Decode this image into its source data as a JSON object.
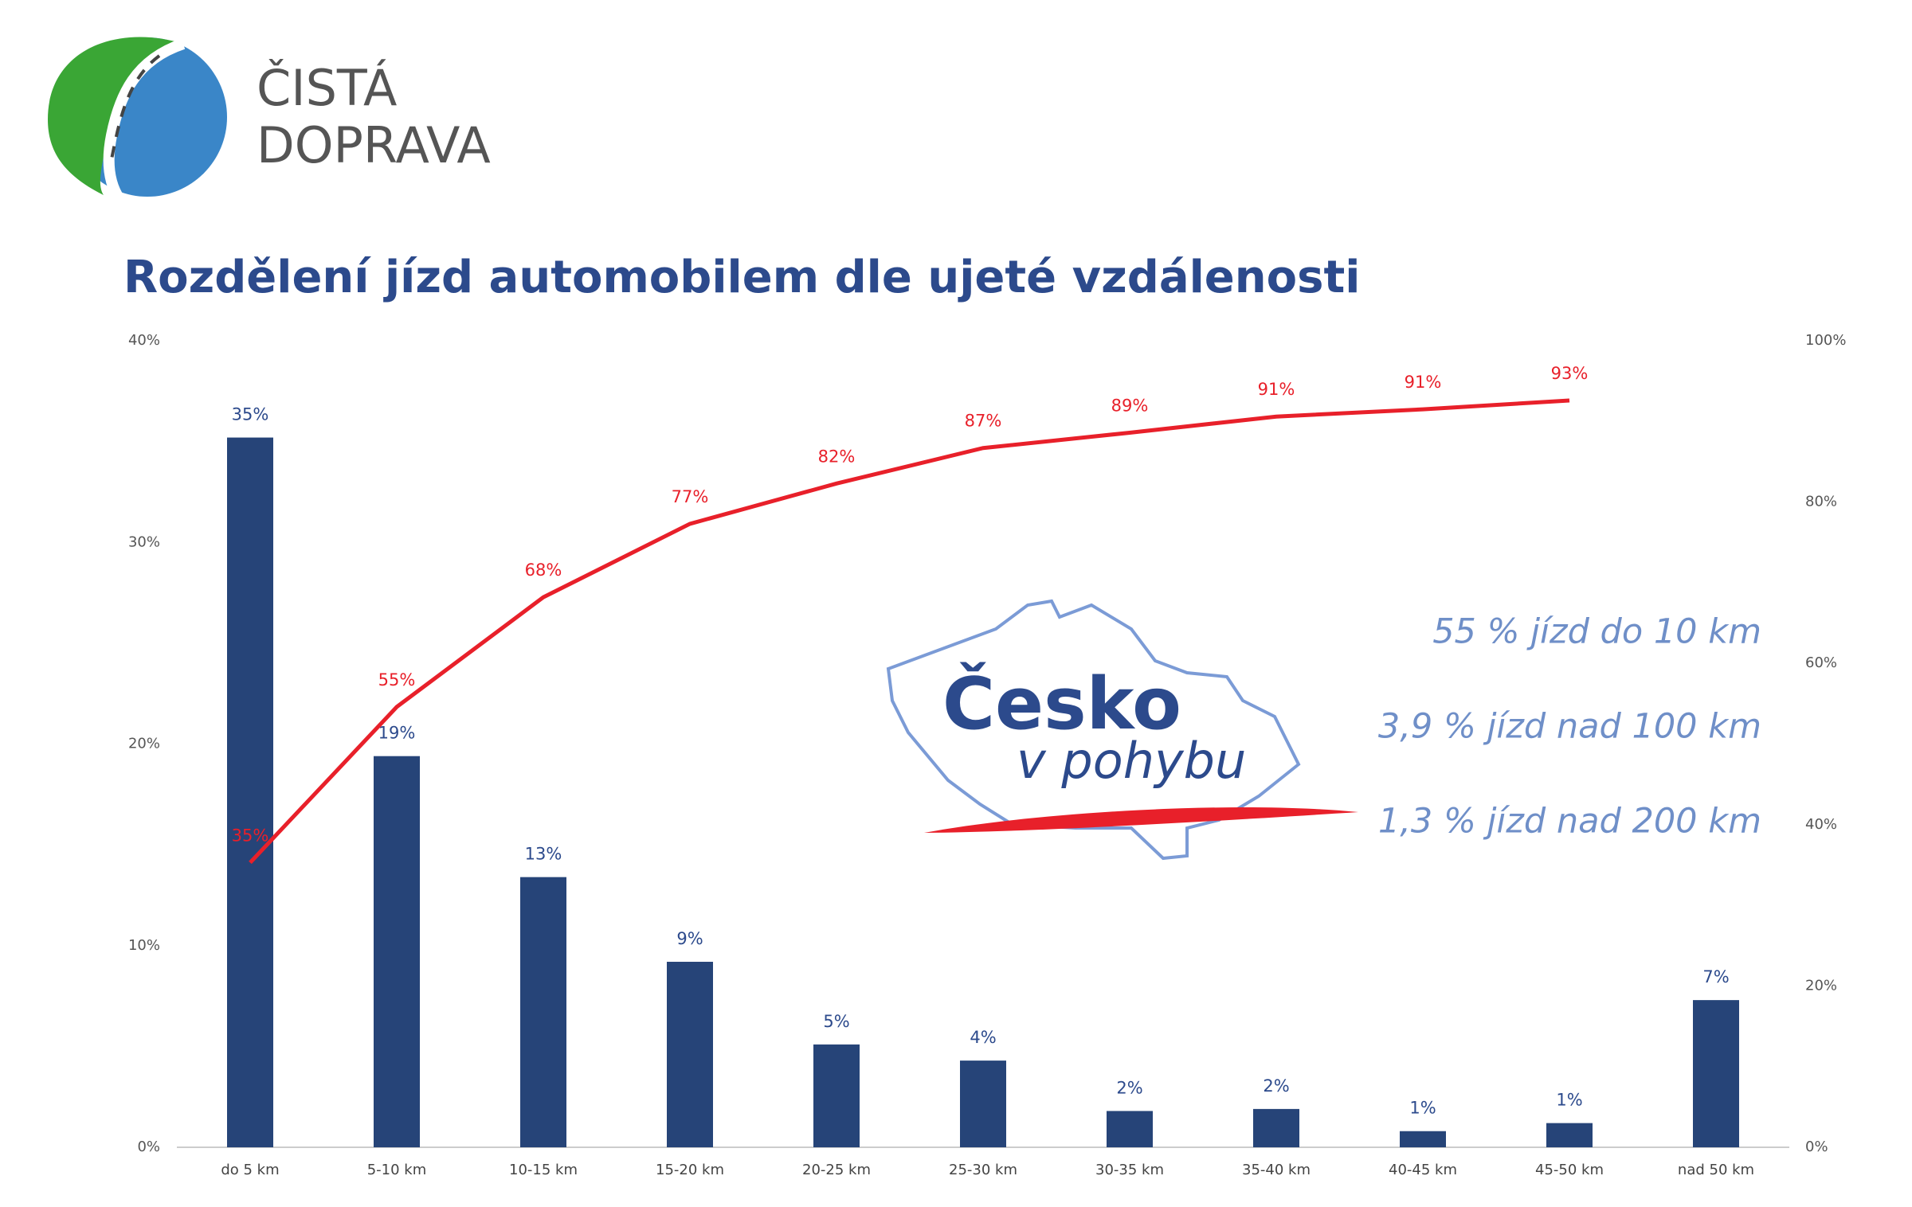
{
  "logo": {
    "line1": "ČISTÁ",
    "line2": "DOPRAVA"
  },
  "watermark": {
    "line1": "Česko",
    "line2": "v pohybu"
  },
  "chart_data": {
    "type": "bar+line",
    "title": "Rozdělení jízd automobilem dle ujeté vzdálenosti",
    "annotations": [
      "55 % jízd do 10 km",
      "3,9 % jízd nad 100 km",
      "1,3 % jízd nad 200 km"
    ],
    "categories": [
      "do 5 km",
      "5-10 km",
      "10-15 km",
      "15-20 km",
      "20-25 km",
      "25-30 km",
      "30-35 km",
      "35-40 km",
      "40-45 km",
      "45-50 km",
      "nad 50 km"
    ],
    "series": [
      {
        "type": "bar",
        "color": "#264478",
        "values": [
          35.2,
          19.4,
          13.4,
          9.2,
          5.1,
          4.3,
          1.8,
          1.9,
          0.8,
          1.2,
          7.3
        ],
        "value_labels": [
          "35%",
          "19%",
          "13%",
          "9%",
          "5%",
          "4%",
          "2%",
          "2%",
          "1%",
          "1%",
          "7%"
        ]
      },
      {
        "type": "line",
        "axis": "y2",
        "color": "#e8202a",
        "values": [
          35.3,
          54.6,
          68.2,
          77.3,
          82.3,
          86.7,
          88.6,
          90.6,
          91.5,
          92.6,
          null
        ],
        "value_labels": [
          "35%",
          "55%",
          "68%",
          "77%",
          "82%",
          "87%",
          "89%",
          "91%",
          "91%",
          "93%",
          null
        ]
      }
    ],
    "ylim": [
      0,
      40
    ],
    "yticks": [
      {
        "value": 0,
        "label": "0%"
      },
      {
        "value": 10,
        "label": "10%"
      },
      {
        "value": 20,
        "label": "20%"
      },
      {
        "value": 30,
        "label": "30%"
      },
      {
        "value": 40,
        "label": "40%"
      }
    ],
    "y2lim": [
      0,
      100
    ],
    "y2ticks": [
      {
        "value": 0,
        "label": "0%"
      },
      {
        "value": 20,
        "label": "20%"
      },
      {
        "value": 40,
        "label": "40%"
      },
      {
        "value": 60,
        "label": "60%"
      },
      {
        "value": 80,
        "label": "80%"
      },
      {
        "value": 100,
        "label": "100%"
      }
    ]
  }
}
